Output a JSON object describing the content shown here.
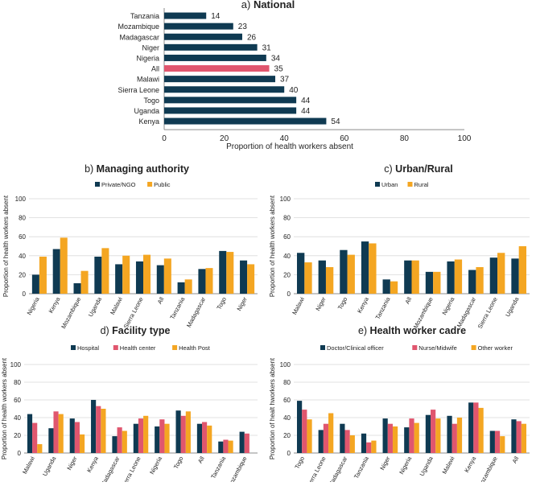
{
  "colors": {
    "navy": "#0f3a52",
    "pink": "#e0566e",
    "orange": "#f4a622",
    "axis": "#8c8c8c",
    "grid": "#d9d9d9",
    "text": "#222222"
  },
  "chart_data": [
    {
      "type": "bar",
      "orientation": "horizontal",
      "title": "a) National",
      "xlabel": "Proportion of health workers absent",
      "xlim": [
        0,
        100
      ],
      "xticks": [
        "0",
        "20",
        "40",
        "60",
        "80",
        "100"
      ],
      "categories": [
        "Tanzania",
        "Mozambique",
        "Madagascar",
        "Niger",
        "Nigeria",
        "All",
        "Malawi",
        "Sierra Leone",
        "Togo",
        "Uganda",
        "Kenya"
      ],
      "values": [
        14,
        23,
        26,
        31,
        34,
        35,
        37,
        40,
        44,
        44,
        54
      ],
      "value_labels": [
        "14",
        "23",
        "26",
        "31",
        "34",
        "35",
        "37",
        "40",
        "44",
        "44",
        "54"
      ],
      "highlight": "All"
    },
    {
      "type": "bar",
      "title": "b) Managing authority",
      "ylabel": "Proportion of health workers absent",
      "ylim": [
        0,
        100
      ],
      "yticks": [
        "0",
        "20",
        "40",
        "60",
        "80",
        "100"
      ],
      "categories": [
        "Nigeria",
        "Kenya",
        "Mozambique",
        "Uganda",
        "Malawi",
        "Sierra Leone",
        "All",
        "Tanzania",
        "Madagascar",
        "Togo",
        "Niger"
      ],
      "series": [
        {
          "name": "Private/NGO",
          "color": "navy",
          "values": [
            20,
            47,
            11,
            39,
            31,
            34,
            30,
            12,
            26,
            45,
            35
          ]
        },
        {
          "name": "Public",
          "color": "orange",
          "values": [
            39,
            59,
            24,
            48,
            40,
            41,
            37,
            15,
            27,
            44,
            31
          ]
        }
      ]
    },
    {
      "type": "bar",
      "title": "c) Urban/Rural",
      "ylabel": "Proportion of health workers absent",
      "ylim": [
        0,
        100
      ],
      "yticks": [
        "0",
        "20",
        "40",
        "60",
        "80",
        "100"
      ],
      "categories": [
        "Malawi",
        "Niger",
        "Togo",
        "Kenya",
        "Tanzania",
        "All",
        "Mozambique",
        "Nigeria",
        "Madagascar",
        "Sierra Leone",
        "Uganda"
      ],
      "series": [
        {
          "name": "Urban",
          "color": "navy",
          "values": [
            43,
            35,
            46,
            55,
            15,
            35,
            23,
            34,
            25,
            38,
            37
          ]
        },
        {
          "name": "Rural",
          "color": "orange",
          "values": [
            33,
            28,
            41,
            53,
            13,
            35,
            23,
            36,
            28,
            43,
            50
          ]
        }
      ]
    },
    {
      "type": "bar",
      "title": "d) Facility type",
      "ylabel": "Proportion of health workers absent",
      "ylim": [
        0,
        100
      ],
      "yticks": [
        "0",
        "20",
        "40",
        "60",
        "80",
        "100"
      ],
      "categories": [
        "Malawi",
        "Uganda",
        "Niger",
        "Kenya",
        "Madagascar",
        "Sierra Leone",
        "Nigeria",
        "Togo",
        "All",
        "Tanzania",
        "Mozambique"
      ],
      "series": [
        {
          "name": "Hospital",
          "color": "navy",
          "values": [
            44,
            28,
            39,
            60,
            19,
            33,
            30,
            48,
            33,
            13,
            24
          ]
        },
        {
          "name": "Health center",
          "color": "pink",
          "values": [
            34,
            47,
            35,
            53,
            29,
            39,
            38,
            42,
            35,
            15,
            22
          ]
        },
        {
          "name": "Health Post",
          "color": "orange",
          "values": [
            10,
            44,
            21,
            50,
            25,
            42,
            33,
            47,
            31,
            14,
            0
          ]
        }
      ]
    },
    {
      "type": "bar",
      "title": "e) Health worker cadre",
      "ylabel": "Proportion of healt hworkers absent",
      "ylim": [
        0,
        100
      ],
      "yticks": [
        "0",
        "20",
        "40",
        "60",
        "80",
        "100"
      ],
      "categories": [
        "Togo",
        "Sierra Leone",
        "Madagascar",
        "Tanzania",
        "Niger",
        "Nigeria",
        "Uganda",
        "Malawi",
        "Kenya",
        "Mozambique",
        "All"
      ],
      "series": [
        {
          "name": "Doctor/Clinical officer",
          "color": "navy",
          "values": [
            59,
            26,
            33,
            22,
            39,
            29,
            43,
            42,
            57,
            25,
            38
          ]
        },
        {
          "name": "Nurse/Midwife",
          "color": "pink",
          "values": [
            49,
            33,
            26,
            12,
            33,
            39,
            49,
            33,
            57,
            25,
            36
          ]
        },
        {
          "name": "Other worker",
          "color": "orange",
          "values": [
            38,
            45,
            20,
            14,
            30,
            34,
            39,
            40,
            51,
            19,
            33
          ]
        }
      ]
    }
  ]
}
